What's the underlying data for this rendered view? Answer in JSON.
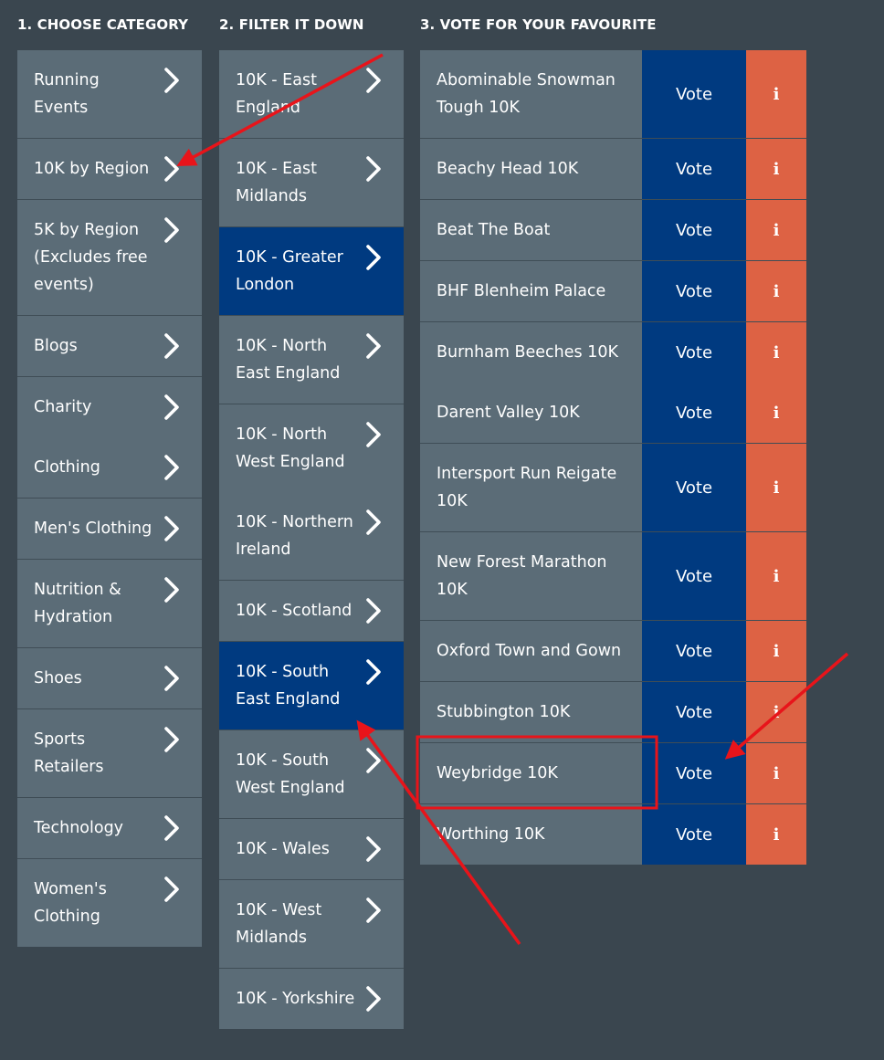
{
  "headers": {
    "choose": "1. CHOOSE CATEGORY",
    "filter": "2. FILTER IT DOWN",
    "vote": "3. VOTE FOR YOUR FAVOURITE"
  },
  "categories": [
    "Running Events",
    "10K by Region",
    "5K by Region (Excludes free events)",
    "Blogs",
    "Charity",
    "Clothing",
    "Men's Clothing",
    "Nutrition & Hydration",
    "Shoes",
    "Sports Retailers",
    "Technology",
    "Women's Clothing"
  ],
  "filters": [
    "10K - East England",
    "10K - East Midlands",
    "10K - Greater London",
    "10K - North East England",
    "10K - North West England",
    "10K - Northern Ireland",
    "10K - Scotland",
    "10K - South East England",
    "10K - South West England",
    "10K - Wales",
    "10K - West Midlands",
    "10K - Yorkshire"
  ],
  "active_filters": [
    "10K - Greater London",
    "10K - South East England"
  ],
  "events": [
    "Abominable Snowman Tough 10K",
    "Beachy Head 10K",
    "Beat The Boat",
    "BHF Blenheim Palace",
    "Burnham Beeches 10K",
    "Darent Valley 10K",
    "Intersport Run Reigate 10K",
    "New Forest Marathon 10K",
    "Oxford Town and Gown",
    "Stubbington 10K",
    "Weybridge 10K",
    "Worthing 10K"
  ],
  "vote_label": "Vote",
  "info_label": "i",
  "colors": {
    "background": "#3a464f",
    "item": "#5b6c77",
    "active": "#003a80",
    "info": "#dd6244",
    "annotation": "#e8141a"
  }
}
